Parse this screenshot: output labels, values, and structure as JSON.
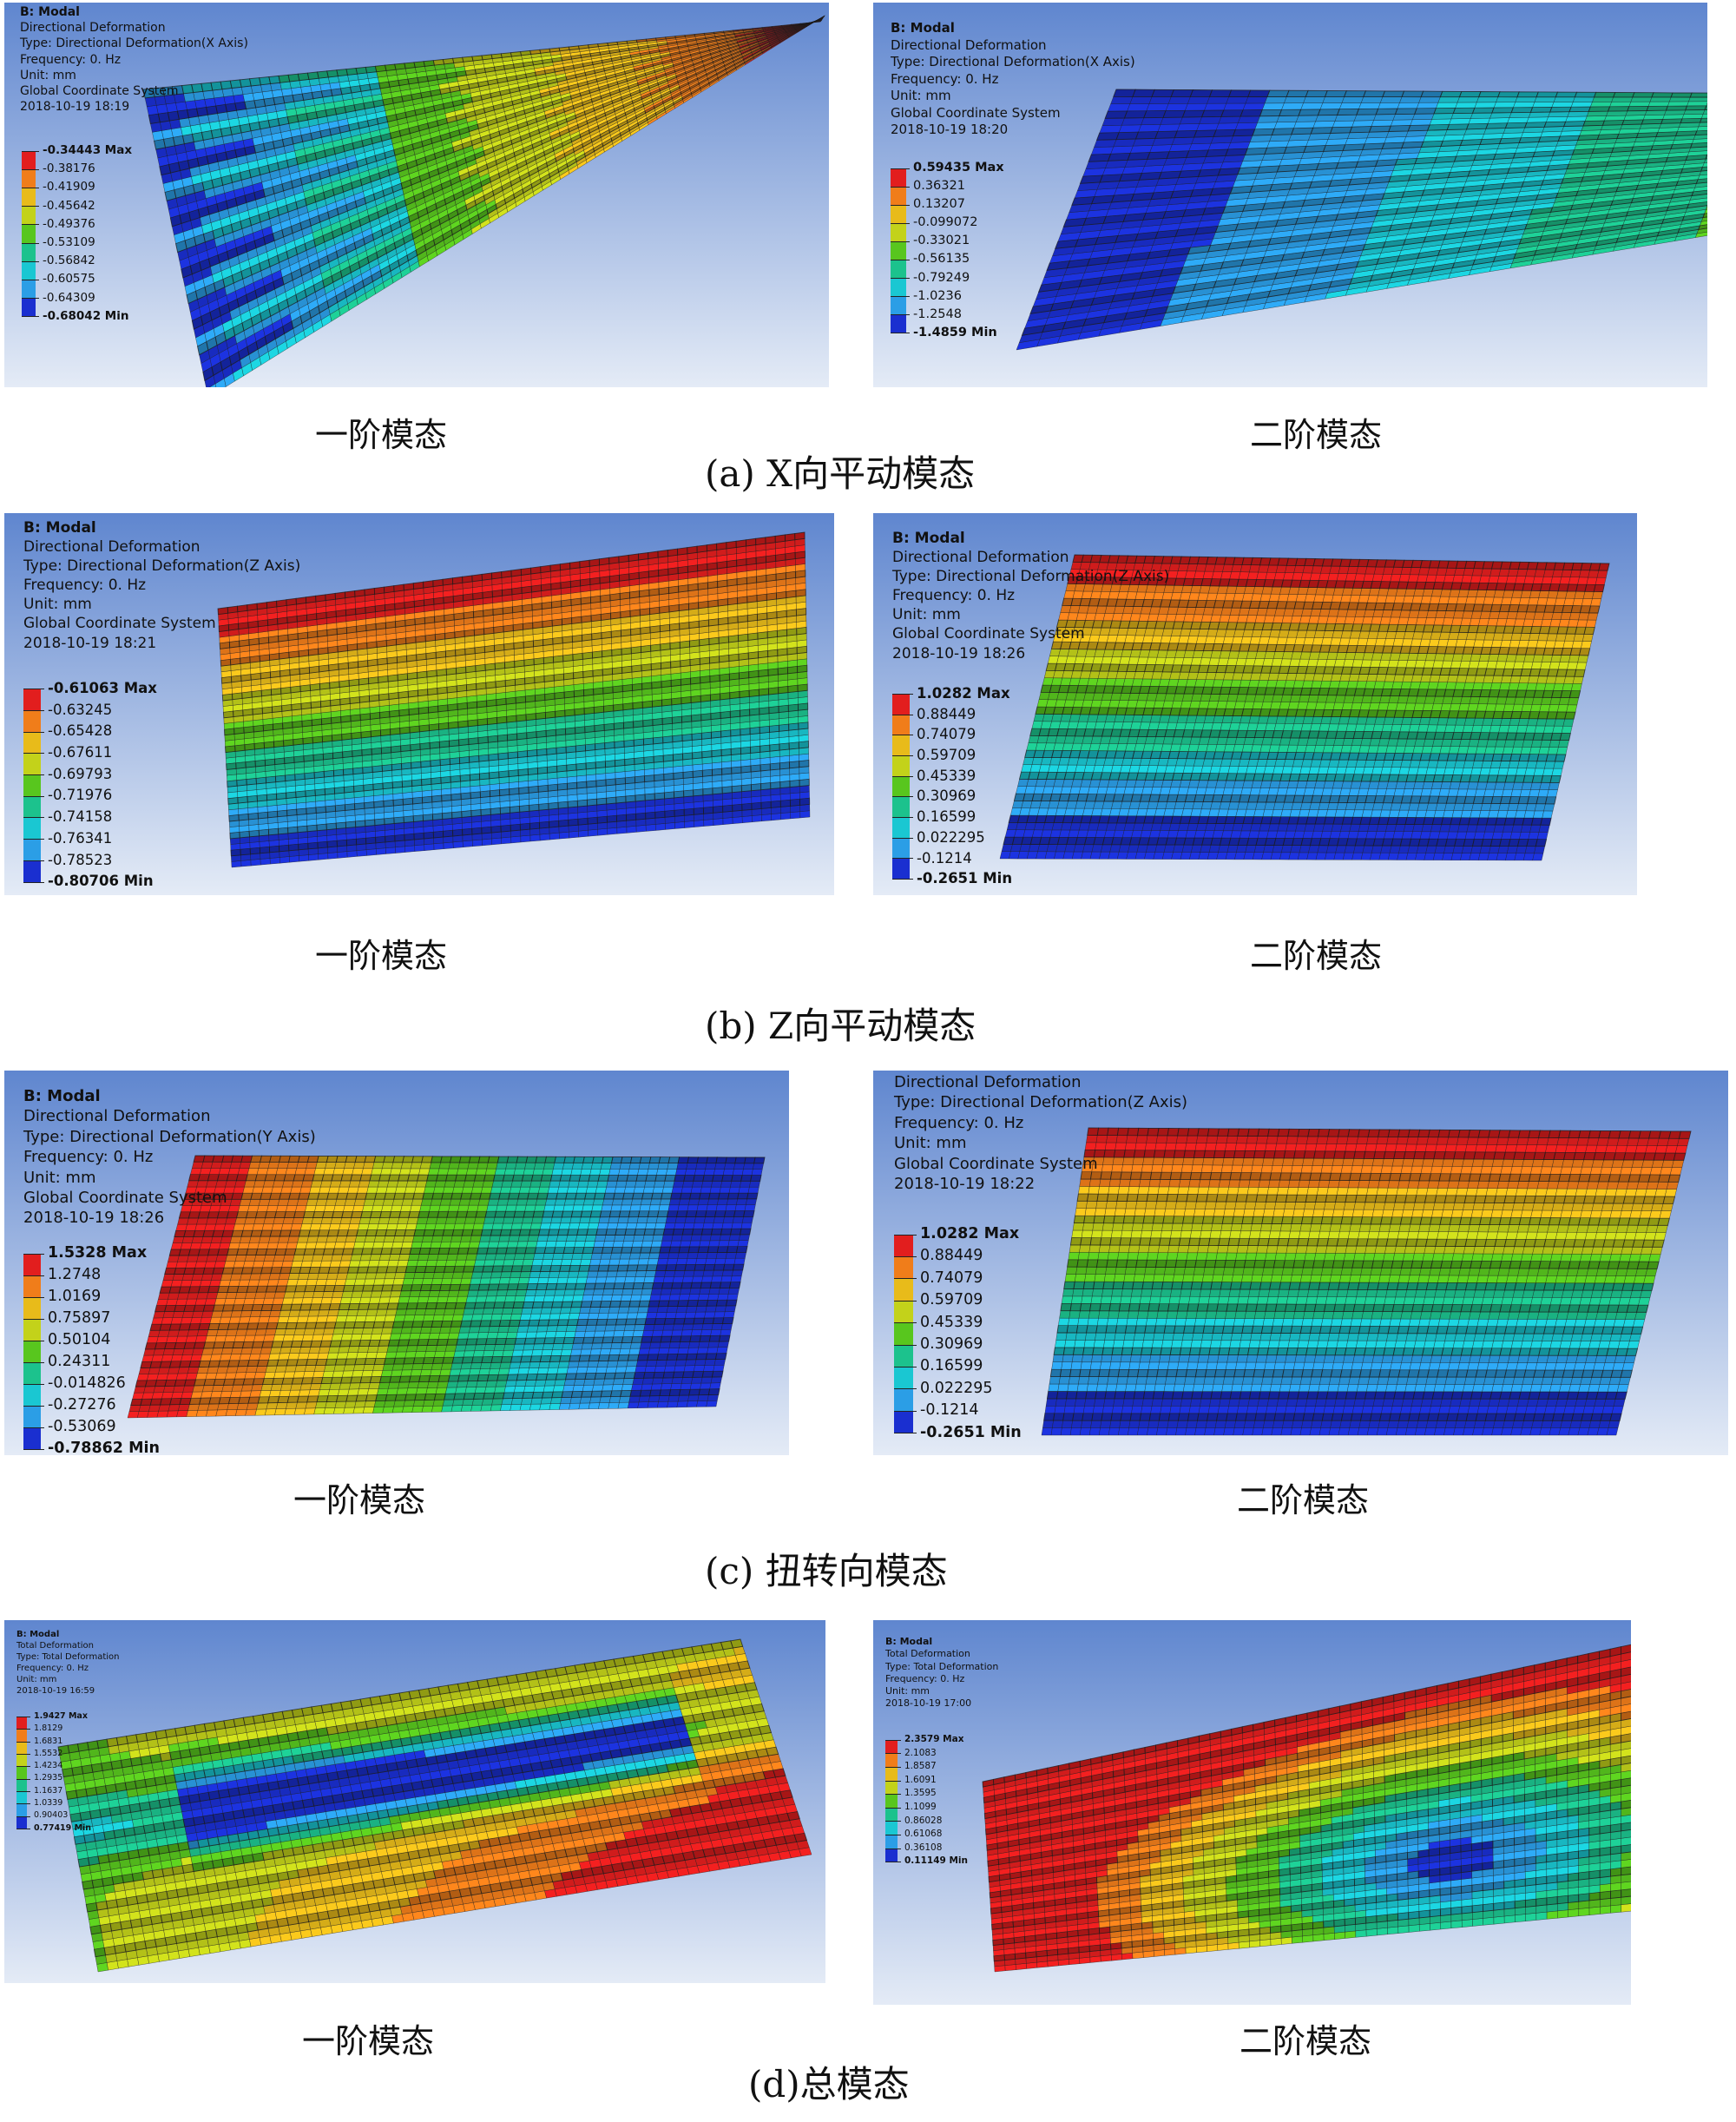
{
  "colors": {
    "bg_top": "#5f86cf",
    "bg_bottom": "#e4ebf6",
    "legend": [
      "#e21e1e",
      "#f07d1a",
      "#e8bb1a",
      "#c3d21a",
      "#58c61e",
      "#1cc28d",
      "#1ac7d2",
      "#2b9ee6",
      "#1a2fd0"
    ]
  },
  "panels": [
    {
      "id": "a1",
      "header": [
        "B: Modal",
        "Directional Deformation",
        "Type: Directional Deformation(X Axis)",
        "Frequency: 0. Hz",
        "Unit: mm",
        "Global Coordinate System",
        "2018-10-19 18:19"
      ],
      "legend": [
        "-0.34443 Max",
        "-0.38176",
        "-0.41909",
        "-0.45642",
        "-0.49376",
        "-0.53109",
        "-0.56842",
        "-0.60575",
        "-0.64309",
        "-0.68042 Min"
      ]
    },
    {
      "id": "a2",
      "header": [
        "B: Modal",
        "Directional Deformation",
        "Type: Directional Deformation(X Axis)",
        "Frequency: 0. Hz",
        "Unit: mm",
        "Global Coordinate System",
        "2018-10-19 18:20"
      ],
      "legend": [
        "0.59435 Max",
        "0.36321",
        "0.13207",
        "-0.099072",
        "-0.33021",
        "-0.56135",
        "-0.79249",
        "-1.0236",
        "-1.2548",
        "-1.4859 Min"
      ]
    },
    {
      "id": "b1",
      "header": [
        "B: Modal",
        "Directional Deformation",
        "Type: Directional Deformation(Z Axis)",
        "Frequency: 0. Hz",
        "Unit: mm",
        "Global Coordinate System",
        "2018-10-19 18:21"
      ],
      "legend": [
        "-0.61063 Max",
        "-0.63245",
        "-0.65428",
        "-0.67611",
        "-0.69793",
        "-0.71976",
        "-0.74158",
        "-0.76341",
        "-0.78523",
        "-0.80706 Min"
      ]
    },
    {
      "id": "b2",
      "header": [
        "B: Modal",
        "Directional Deformation",
        "Type: Directional Deformation(Z Axis)",
        "Frequency: 0. Hz",
        "Unit: mm",
        "Global Coordinate System",
        "2018-10-19 18:26"
      ],
      "legend": [
        "1.0282 Max",
        "0.88449",
        "0.74079",
        "0.59709",
        "0.45339",
        "0.30969",
        "0.16599",
        "0.022295",
        "-0.1214",
        "-0.2651 Min"
      ]
    },
    {
      "id": "c1",
      "header": [
        "B: Modal",
        "Directional Deformation",
        "Type: Directional Deformation(Y Axis)",
        "Frequency: 0. Hz",
        "Unit: mm",
        "Global Coordinate System",
        "2018-10-19 18:26"
      ],
      "legend": [
        "1.5328 Max",
        "1.2748",
        "1.0169",
        "0.75897",
        "0.50104",
        "0.24311",
        "-0.014826",
        "-0.27276",
        "-0.53069",
        "-0.78862 Min"
      ]
    },
    {
      "id": "c2",
      "header": [
        "Directional Deformation",
        "Type: Directional Deformation(Z Axis)",
        "Frequency: 0. Hz",
        "Unit: mm",
        "Global Coordinate System",
        "2018-10-19 18:22"
      ],
      "legend": [
        "1.0282 Max",
        "0.88449",
        "0.74079",
        "0.59709",
        "0.45339",
        "0.30969",
        "0.16599",
        "0.022295",
        "-0.1214",
        "-0.2651 Min"
      ]
    },
    {
      "id": "d1",
      "header": [
        "B: Modal",
        "Total Deformation",
        "Type: Total Deformation",
        "Frequency: 0. Hz",
        "Unit: mm",
        "2018-10-19 16:59"
      ],
      "legend": [
        "1.9427 Max",
        "1.8129",
        "1.6831",
        "1.5532",
        "1.4234",
        "1.2935",
        "1.1637",
        "1.0339",
        "0.90403",
        "0.77419 Min"
      ]
    },
    {
      "id": "d2",
      "header": [
        "B: Modal",
        "Total Deformation",
        "Type: Total Deformation",
        "Frequency: 0. Hz",
        "Unit: mm",
        "2018-10-19 17:00"
      ],
      "legend": [
        "2.3579 Max",
        "2.1083",
        "1.8587",
        "1.6091",
        "1.3595",
        "1.1099",
        "0.86028",
        "0.61068",
        "0.36108",
        "0.11149 Min"
      ]
    }
  ],
  "captions": {
    "a_left": "一阶模态",
    "a_right": "二阶模态",
    "a_title": "(a) X向平动模态",
    "b_left": "一阶模态",
    "b_right": "二阶模态",
    "b_title": "(b) Z向平动模态",
    "c_left": "一阶模态",
    "c_right": "二阶模态",
    "c_title": "(c) 扭转向模态",
    "d_left": "一阶模态",
    "d_right": "二阶模态",
    "d_title": "(d)总模态"
  }
}
